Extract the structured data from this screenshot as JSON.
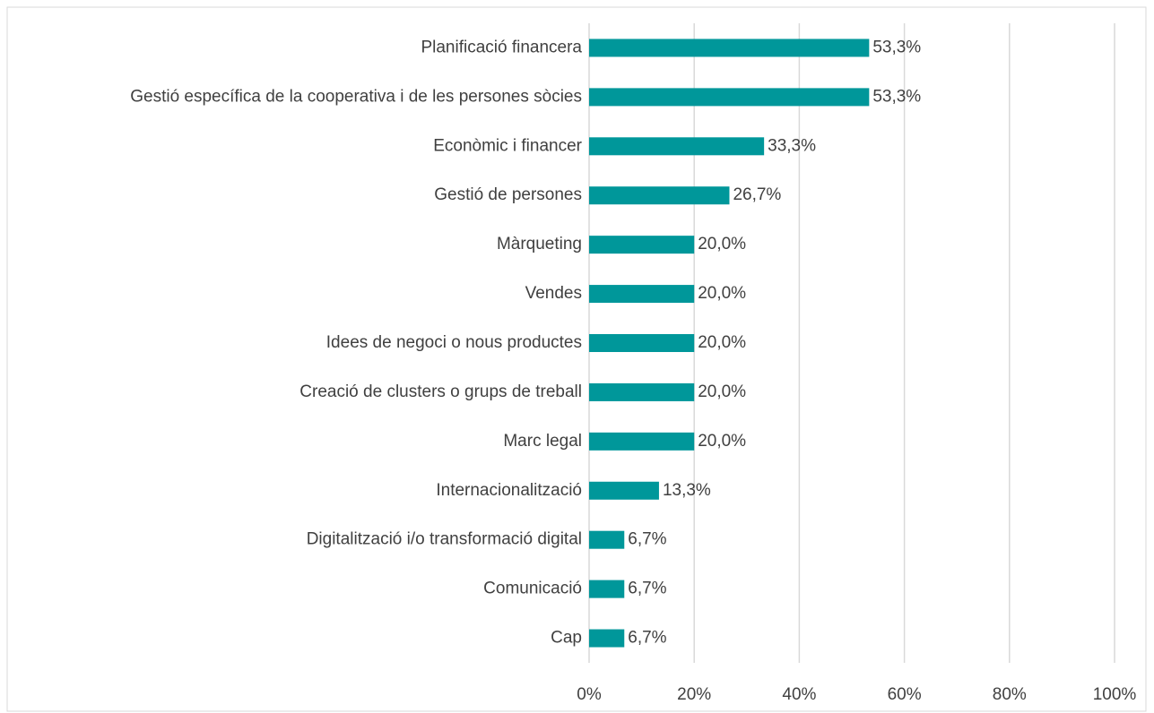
{
  "chart_data": {
    "type": "barh",
    "categories": [
      "Planificació financera",
      "Gestió específica de la cooperativa i de les persones sòcies",
      "Econòmic i financer",
      "Gestió de persones",
      "Màrqueting",
      "Vendes",
      "Idees de negoci o nous productes",
      "Creació de clusters o grups de treball",
      "Marc legal",
      "Internacionalització",
      "Digitalització i/o transformació digital",
      "Comunicació",
      "Cap"
    ],
    "values": [
      53.3,
      53.3,
      33.3,
      26.7,
      20.0,
      20.0,
      20.0,
      20.0,
      20.0,
      13.3,
      6.7,
      6.7,
      6.7
    ],
    "value_labels": [
      "53,3%",
      "53,3%",
      "33,3%",
      "26,7%",
      "20,0%",
      "20,0%",
      "20,0%",
      "20,0%",
      "20,0%",
      "13,3%",
      "6,7%",
      "6,7%",
      "6,7%"
    ],
    "color": "#00979a",
    "xlim": [
      0,
      100
    ],
    "xticks": [
      {
        "value": 0,
        "label": "0%"
      },
      {
        "value": 20,
        "label": "20%"
      },
      {
        "value": 40,
        "label": "40%"
      },
      {
        "value": 60,
        "label": "60%"
      },
      {
        "value": 80,
        "label": "80%"
      },
      {
        "value": 100,
        "label": "100%"
      }
    ],
    "grid": true
  }
}
